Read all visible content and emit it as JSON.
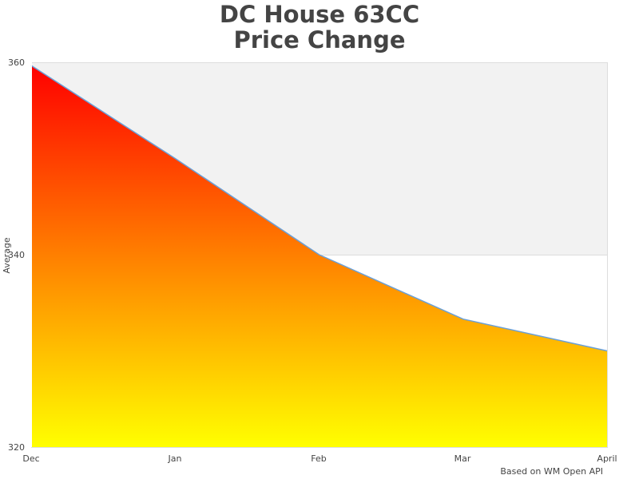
{
  "title": {
    "line1": "DC House 63CC",
    "line2": "Price Change"
  },
  "credit": "Based on WM Open API",
  "colors": {
    "plot_band": "#f2f2f2",
    "line": "#6aa0d8",
    "gradient_top": "#ff0000",
    "gradient_mid": "#ff8000",
    "gradient_bottom": "#ffff00",
    "text": "#444444"
  },
  "chart_data": {
    "type": "area",
    "title": "DC House 63CC Price Change",
    "categories": [
      "Dec",
      "Jan",
      "Feb",
      "Mar",
      "April"
    ],
    "series": [
      {
        "name": "Average",
        "values": [
          360,
          350,
          340,
          333.3,
          330
        ]
      }
    ],
    "xlabel": "",
    "ylabel": "Average",
    "ylim": [
      320,
      360
    ],
    "yticks": [
      320,
      340,
      360
    ],
    "plot_bands": [
      {
        "from": 340,
        "to": 360,
        "color": "#f2f2f2"
      }
    ],
    "grid": false,
    "legend": "none",
    "annotations": [
      "Based on WM Open API"
    ]
  },
  "axis": {
    "y_label": "Average",
    "y_ticks": [
      "360",
      "340",
      "320"
    ],
    "x_ticks": [
      "Dec",
      "Jan",
      "Feb",
      "Mar",
      "April"
    ]
  }
}
